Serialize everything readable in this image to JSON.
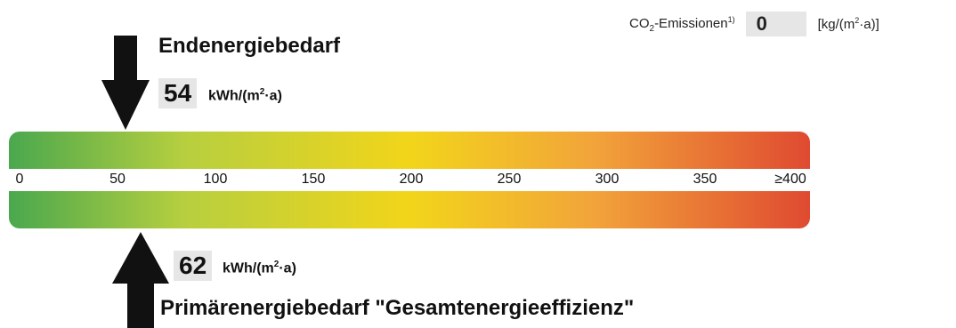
{
  "co2": {
    "label_main": "CO",
    "label_sub": "2",
    "label_rest": "-Emissionen",
    "footnote": "1)",
    "value": "0",
    "unit_pre": "[kg/(m",
    "unit_sup": "2",
    "unit_post": "·a)]"
  },
  "end_energy": {
    "title": "Endenergiebedarf",
    "value": "54",
    "value_number": 54,
    "unit_pre": "kWh/(m",
    "unit_sup": "2",
    "unit_post": "·a)"
  },
  "primary_energy": {
    "title": "Primärenergiebedarf \"Gesamtenergieeffizienz\"",
    "value": "62",
    "value_number": 62,
    "unit_pre": "kWh/(m",
    "unit_sup": "2",
    "unit_post": "·a)"
  },
  "scale": {
    "min": 0,
    "max": 400,
    "ticks": [
      "0",
      "50",
      "100",
      "150",
      "200",
      "250",
      "300",
      "350",
      "≥400"
    ],
    "colors": [
      "#4aa84e",
      "#b7cf3f",
      "#f2d51a",
      "#f2a43a",
      "#df4a31"
    ]
  }
}
